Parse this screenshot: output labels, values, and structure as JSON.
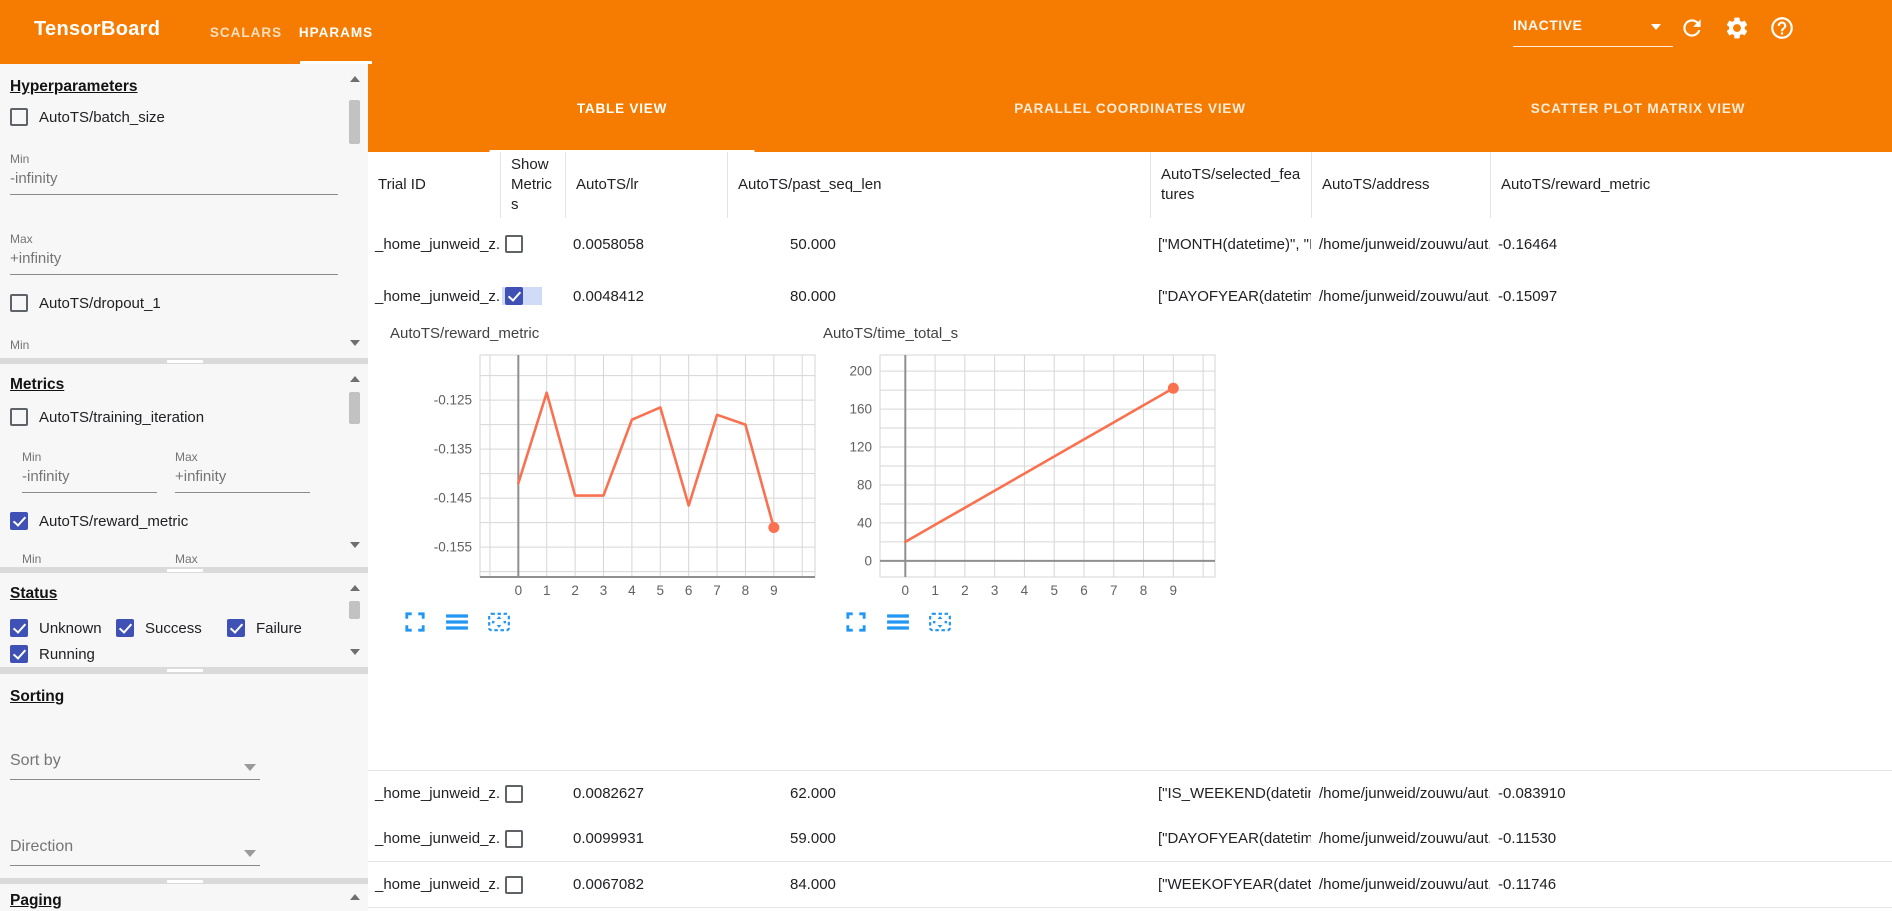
{
  "header": {
    "logo": "TensorBoard",
    "nav_tabs": [
      {
        "label": "SCALARS",
        "active": false
      },
      {
        "label": "HPARAMS",
        "active": true
      }
    ],
    "run_status": "INACTIVE"
  },
  "colors": {
    "header_bg": "#f57c00",
    "checkbox_checked": "#3f51b5",
    "chart_line": "#fa7150",
    "chart_icon_blue": "#2196f3"
  },
  "sidebar": {
    "hyperparameters": {
      "heading": "Hyperparameters",
      "items": [
        {
          "label": "AutoTS/batch_size",
          "checked": false,
          "min_label": "Min",
          "min_value": "-infinity",
          "max_label": "Max",
          "max_value": "+infinity"
        },
        {
          "label": "AutoTS/dropout_1",
          "checked": false,
          "min_label": "Min"
        }
      ]
    },
    "metrics": {
      "heading": "Metrics",
      "items": [
        {
          "label": "AutoTS/training_iteration",
          "checked": false,
          "min_label": "Min",
          "min_value": "-infinity",
          "max_label": "Max",
          "max_value": "+infinity"
        },
        {
          "label": "AutoTS/reward_metric",
          "checked": true,
          "min_label": "Min",
          "max_label": "Max"
        }
      ]
    },
    "status": {
      "heading": "Status",
      "items": [
        {
          "label": "Unknown",
          "checked": true
        },
        {
          "label": "Success",
          "checked": true
        },
        {
          "label": "Failure",
          "checked": true
        },
        {
          "label": "Running",
          "checked": true
        }
      ]
    },
    "sorting": {
      "heading": "Sorting",
      "sort_by_placeholder": "Sort by",
      "direction_placeholder": "Direction"
    },
    "paging": {
      "heading": "Paging"
    }
  },
  "main": {
    "view_tabs": [
      {
        "label": "TABLE VIEW",
        "active": true
      },
      {
        "label": "PARALLEL COORDINATES VIEW",
        "active": false
      },
      {
        "label": "SCATTER PLOT MATRIX VIEW",
        "active": false
      }
    ],
    "table": {
      "columns": [
        "Trial ID",
        "Show Metrics",
        "AutoTS/lr",
        "AutoTS/past_seq_len",
        "AutoTS/selected_features",
        "AutoTS/address",
        "AutoTS/reward_metric"
      ],
      "rows": [
        {
          "trial_id": "_home_junweid_z...",
          "show_metrics": false,
          "lr": "0.0058058",
          "past_seq_len": "50.000",
          "selected_features": "[\"MONTH(datetime)\", \"I...",
          "address": "/home/junweid/zouwu/aut...",
          "reward_metric": "-0.16464"
        },
        {
          "trial_id": "_home_junweid_z...",
          "show_metrics": true,
          "lr": "0.0048412",
          "past_seq_len": "80.000",
          "selected_features": "[\"DAYOFYEAR(datetime...",
          "address": "/home/junweid/zouwu/aut...",
          "reward_metric": "-0.15097"
        },
        {
          "trial_id": "_home_junweid_z...",
          "show_metrics": false,
          "lr": "0.0082627",
          "past_seq_len": "62.000",
          "selected_features": "[\"IS_WEEKEND(datetim...",
          "address": "/home/junweid/zouwu/aut...",
          "reward_metric": "-0.083910"
        },
        {
          "trial_id": "_home_junweid_z...",
          "show_metrics": false,
          "lr": "0.0099931",
          "past_seq_len": "59.000",
          "selected_features": "[\"DAYOFYEAR(datetime...",
          "address": "/home/junweid/zouwu/aut...",
          "reward_metric": "-0.11530"
        },
        {
          "trial_id": "_home_junweid_z...",
          "show_metrics": false,
          "lr": "0.0067082",
          "past_seq_len": "84.000",
          "selected_features": "[\"WEEKOFYEAR(dateti...",
          "address": "/home/junweid/zouwu/aut...",
          "reward_metric": "-0.11746"
        }
      ]
    }
  },
  "chart_data": [
    {
      "type": "line",
      "title": "AutoTS/reward_metric",
      "x": [
        0,
        1,
        2,
        3,
        4,
        5,
        6,
        7,
        8,
        9
      ],
      "values": [
        -0.142,
        -0.1235,
        -0.1445,
        -0.1445,
        -0.129,
        -0.1265,
        -0.1465,
        -0.128,
        -0.13,
        -0.151
      ],
      "xlim": [
        -1.35,
        10.45
      ],
      "ylim": [
        -0.1611,
        -0.1158
      ],
      "yticks": [
        -0.125,
        -0.135,
        -0.145,
        -0.155
      ],
      "ytick_labels": [
        "-0.125",
        "-0.135",
        "-0.145",
        "-0.155"
      ],
      "y_minor_step": 0.005,
      "xtick_labels": [
        "0",
        "1",
        "2",
        "3",
        "4",
        "5",
        "6",
        "7",
        "8",
        "9"
      ],
      "grid": true,
      "legend": false,
      "line_color": "#fa7150",
      "endpoint_marker": true,
      "x_axis_at": "bottom"
    },
    {
      "type": "line",
      "title": "AutoTS/time_total_s",
      "x": [
        0,
        1,
        2,
        3,
        4,
        5,
        6,
        7,
        8,
        9
      ],
      "values": [
        20,
        38,
        56,
        74,
        92,
        110,
        128,
        146,
        164,
        182
      ],
      "xlim": [
        -0.85,
        10.4
      ],
      "ylim": [
        -17,
        217
      ],
      "yticks": [
        0,
        40,
        80,
        120,
        160,
        200
      ],
      "ytick_labels": [
        "0",
        "40",
        "80",
        "120",
        "160",
        "200"
      ],
      "y_minor_step": 20,
      "xtick_labels": [
        "0",
        "1",
        "2",
        "3",
        "4",
        "5",
        "6",
        "7",
        "8",
        "9"
      ],
      "grid": true,
      "legend": false,
      "line_color": "#fa7150",
      "endpoint_marker": true,
      "x_axis_at": 0
    }
  ]
}
